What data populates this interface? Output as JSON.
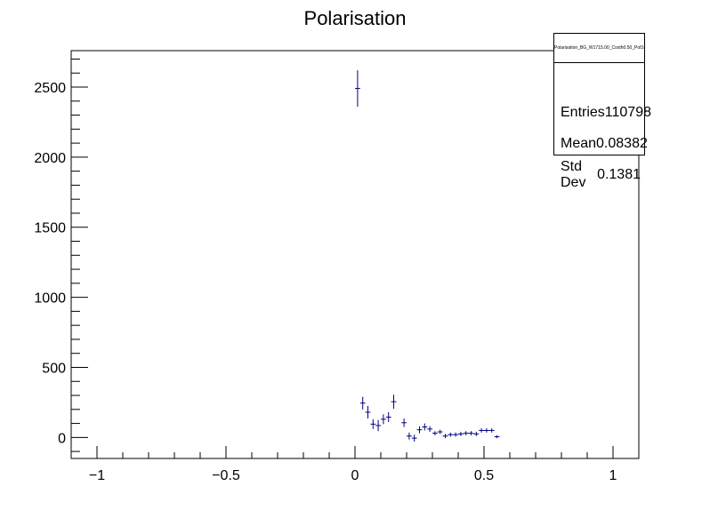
{
  "chart_data": {
    "type": "scatter",
    "title": "Polarisation",
    "xlabel": "",
    "ylabel": "",
    "xlim": [
      -1.1,
      1.1
    ],
    "ylim": [
      -150,
      2760
    ],
    "x_ticks": [
      -1,
      -0.5,
      0,
      0.5,
      1
    ],
    "x_tick_labels": [
      "−1",
      "−0.5",
      "0",
      "0.5",
      "1"
    ],
    "y_ticks": [
      0,
      500,
      1000,
      1500,
      2000,
      2500
    ],
    "y_tick_labels": [
      "0",
      "500",
      "1000",
      "1500",
      "2000",
      "2500"
    ],
    "grid": false,
    "series": [
      {
        "color": "#000080",
        "bin_width": 0.02,
        "points": [
          {
            "x": 0.01,
            "y": 2490,
            "err": 130
          },
          {
            "x": 0.03,
            "y": 245,
            "err": 45
          },
          {
            "x": 0.05,
            "y": 180,
            "err": 45
          },
          {
            "x": 0.07,
            "y": 95,
            "err": 35
          },
          {
            "x": 0.09,
            "y": 85,
            "err": 40
          },
          {
            "x": 0.11,
            "y": 130,
            "err": 35
          },
          {
            "x": 0.13,
            "y": 145,
            "err": 35
          },
          {
            "x": 0.15,
            "y": 255,
            "err": 50
          },
          {
            "x": 0.19,
            "y": 105,
            "err": 30
          },
          {
            "x": 0.21,
            "y": 10,
            "err": 25
          },
          {
            "x": 0.23,
            "y": -5,
            "err": 25
          },
          {
            "x": 0.25,
            "y": 55,
            "err": 25
          },
          {
            "x": 0.27,
            "y": 75,
            "err": 25
          },
          {
            "x": 0.29,
            "y": 60,
            "err": 20
          },
          {
            "x": 0.31,
            "y": 30,
            "err": 15
          },
          {
            "x": 0.33,
            "y": 40,
            "err": 15
          },
          {
            "x": 0.35,
            "y": 10,
            "err": 15
          },
          {
            "x": 0.37,
            "y": 20,
            "err": 15
          },
          {
            "x": 0.39,
            "y": 20,
            "err": 15
          },
          {
            "x": 0.41,
            "y": 25,
            "err": 15
          },
          {
            "x": 0.43,
            "y": 30,
            "err": 15
          },
          {
            "x": 0.45,
            "y": 30,
            "err": 15
          },
          {
            "x": 0.47,
            "y": 25,
            "err": 15
          },
          {
            "x": 0.49,
            "y": 50,
            "err": 15
          },
          {
            "x": 0.51,
            "y": 50,
            "err": 15
          },
          {
            "x": 0.53,
            "y": 50,
            "err": 15
          },
          {
            "x": 0.55,
            "y": 5,
            "err": 10
          }
        ]
      }
    ]
  },
  "stats": {
    "title": "Polarisation_BG_W1715.00_Costh0.50_PolStateD-0.50_",
    "rows": [
      {
        "label": "Entries",
        "value": "110798"
      },
      {
        "label": "Mean",
        "value": "0.08382"
      },
      {
        "label": "Std Dev",
        "value": "0.1381"
      }
    ]
  }
}
